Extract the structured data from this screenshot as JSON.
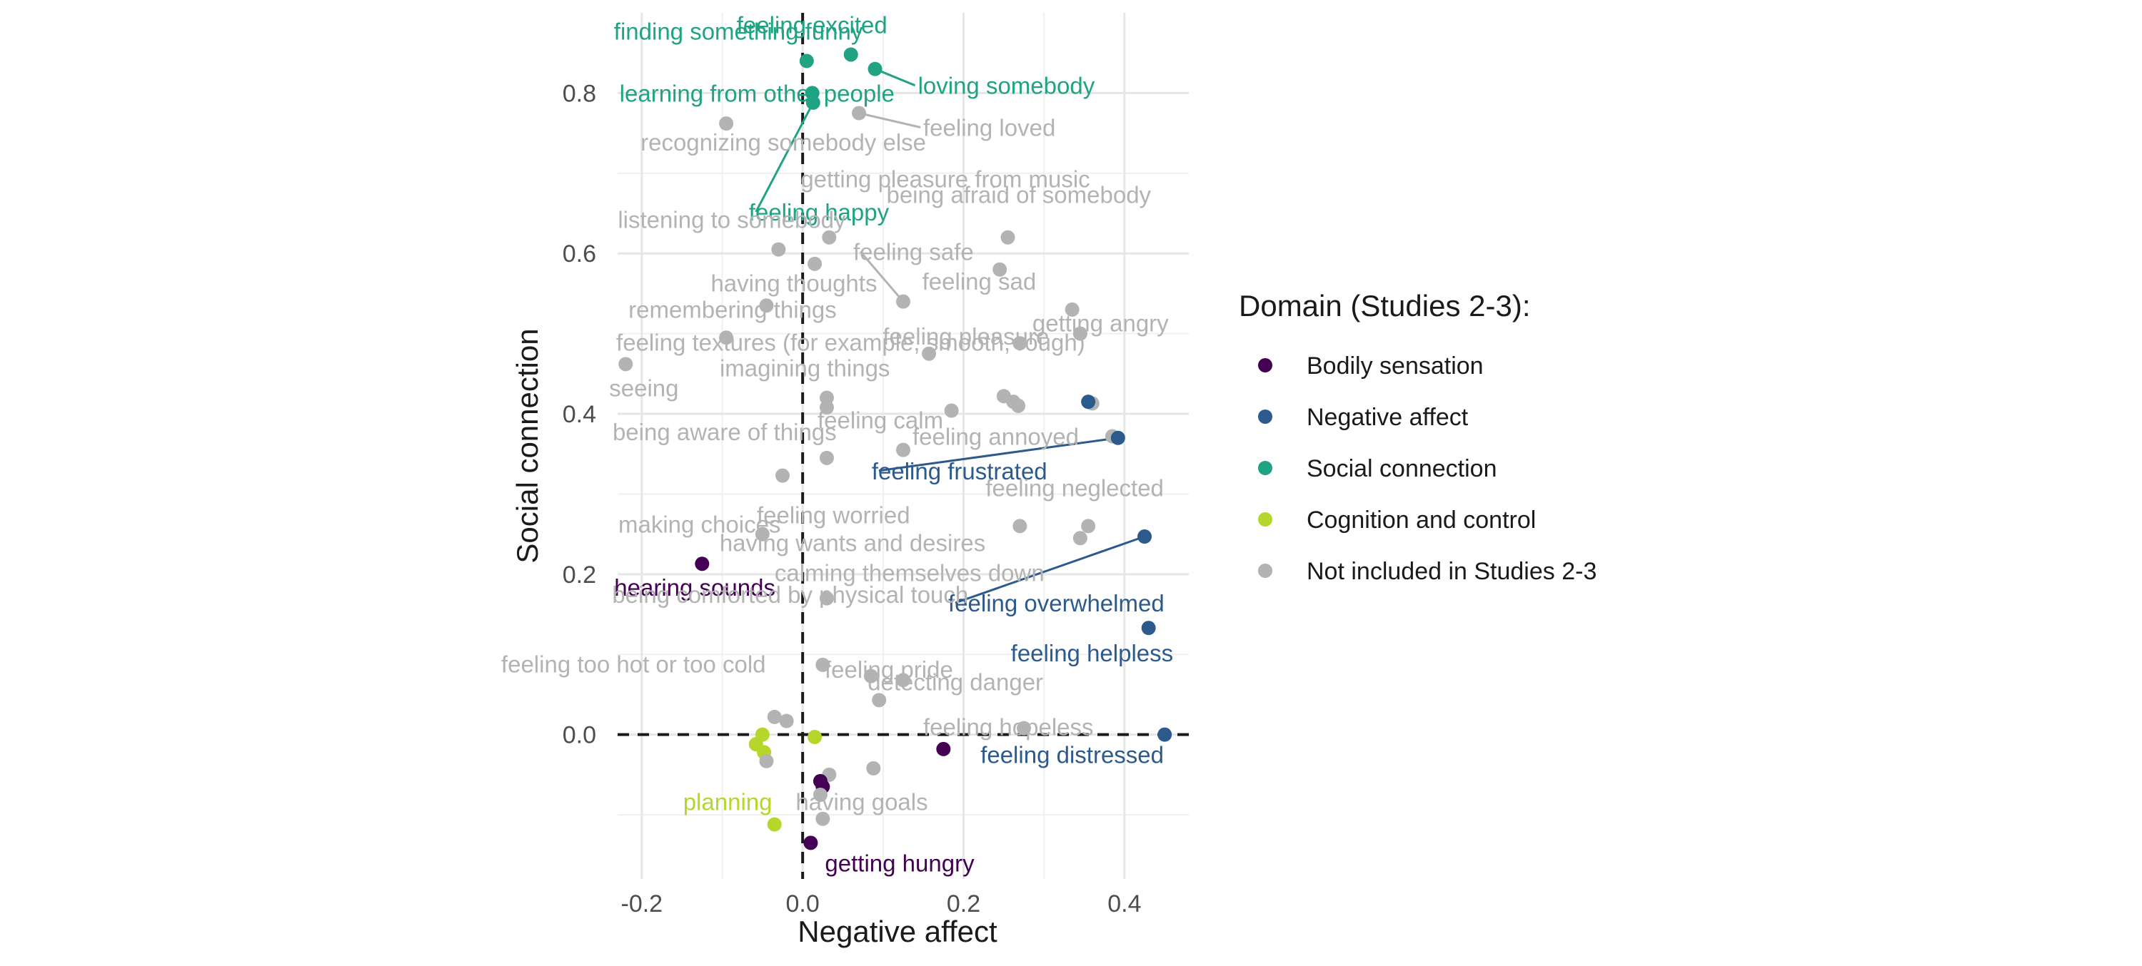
{
  "chart_data": {
    "type": "scatter",
    "title": "",
    "xlabel": "Negative affect",
    "ylabel": "Social connection",
    "xlim": [
      -0.23,
      0.48
    ],
    "ylim": [
      -0.18,
      0.9
    ],
    "x_ticks": [
      -0.2,
      0.0,
      0.2,
      0.4
    ],
    "x_tick_labels": [
      "-0.2",
      "0.0",
      "0.2",
      "0.4"
    ],
    "y_ticks": [
      0.0,
      0.2,
      0.4,
      0.6,
      0.8
    ],
    "y_tick_labels": [
      "0.0",
      "0.2",
      "0.4",
      "0.6",
      "0.8"
    ],
    "reference_lines": {
      "x": 0,
      "y": 0,
      "style": "dashed"
    },
    "grid": true,
    "legend": {
      "title": "Domain (Studies 2-3):",
      "position": "right",
      "entries": [
        {
          "key": "bodily",
          "label": "Bodily sensation",
          "color": "#440154"
        },
        {
          "key": "negative",
          "label": "Negative affect",
          "color": "#2c5a8c"
        },
        {
          "key": "social",
          "label": "Social connection",
          "color": "#1fa383"
        },
        {
          "key": "cognition",
          "label": "Cognition and control",
          "color": "#b5d62b"
        },
        {
          "key": "other",
          "label": "Not included in Studies 2-3",
          "color": "#b3b3b3"
        }
      ]
    },
    "points": [
      {
        "x": 0.005,
        "y": 0.84,
        "group": "social",
        "label": "finding something funny"
      },
      {
        "x": 0.06,
        "y": 0.848,
        "group": "social",
        "label": "feeling excited"
      },
      {
        "x": 0.09,
        "y": 0.83,
        "group": "social",
        "label": "loving somebody"
      },
      {
        "x": 0.012,
        "y": 0.8,
        "group": "social",
        "label": "learning from other people"
      },
      {
        "x": 0.013,
        "y": 0.788,
        "group": "social",
        "label": "feeling happy"
      },
      {
        "x": 0.07,
        "y": 0.775,
        "group": "other",
        "label": "feeling loved"
      },
      {
        "x": -0.095,
        "y": 0.762,
        "group": "other",
        "label": "recognizing somebody else"
      },
      {
        "x": 0.033,
        "y": 0.62,
        "group": "other",
        "label": "getting pleasure from music"
      },
      {
        "x": 0.255,
        "y": 0.62,
        "group": "other",
        "label": "being afraid of somebody"
      },
      {
        "x": -0.03,
        "y": 0.605,
        "group": "other",
        "label": "listening to somebody"
      },
      {
        "x": 0.015,
        "y": 0.587,
        "group": "other",
        "label": ""
      },
      {
        "x": 0.245,
        "y": 0.58,
        "group": "other",
        "label": ""
      },
      {
        "x": 0.125,
        "y": 0.54,
        "group": "other",
        "label": "feeling safe"
      },
      {
        "x": -0.045,
        "y": 0.535,
        "group": "other",
        "label": "having thoughts"
      },
      {
        "x": 0.335,
        "y": 0.53,
        "group": "other",
        "label": "feeling sad"
      },
      {
        "x": -0.095,
        "y": 0.495,
        "group": "other",
        "label": "remembering things"
      },
      {
        "x": 0.157,
        "y": 0.475,
        "group": "other",
        "label": "feeling textures (for example, smooth, rough)"
      },
      {
        "x": -0.22,
        "y": 0.462,
        "group": "other",
        "label": "seeing"
      },
      {
        "x": 0.27,
        "y": 0.488,
        "group": "other",
        "label": "feeling pleasure"
      },
      {
        "x": 0.345,
        "y": 0.5,
        "group": "other",
        "label": "getting angry"
      },
      {
        "x": 0.03,
        "y": 0.42,
        "group": "other",
        "label": "imagining things"
      },
      {
        "x": 0.03,
        "y": 0.408,
        "group": "other",
        "label": ""
      },
      {
        "x": 0.25,
        "y": 0.422,
        "group": "other",
        "label": ""
      },
      {
        "x": 0.262,
        "y": 0.415,
        "group": "other",
        "label": ""
      },
      {
        "x": 0.268,
        "y": 0.41,
        "group": "other",
        "label": ""
      },
      {
        "x": 0.185,
        "y": 0.404,
        "group": "other",
        "label": ""
      },
      {
        "x": 0.36,
        "y": 0.413,
        "group": "other",
        "label": ""
      },
      {
        "x": 0.355,
        "y": 0.415,
        "group": "negative",
        "label": ""
      },
      {
        "x": 0.125,
        "y": 0.355,
        "group": "other",
        "label": "feeling calm"
      },
      {
        "x": 0.03,
        "y": 0.345,
        "group": "other",
        "label": "being aware of things"
      },
      {
        "x": 0.385,
        "y": 0.372,
        "group": "other",
        "label": "feeling annoyed"
      },
      {
        "x": 0.392,
        "y": 0.37,
        "group": "negative",
        "label": "feeling frustrated"
      },
      {
        "x": -0.025,
        "y": 0.323,
        "group": "other",
        "label": "making choices"
      },
      {
        "x": -0.05,
        "y": 0.25,
        "group": "other",
        "label": "having wants and desires"
      },
      {
        "x": 0.27,
        "y": 0.26,
        "group": "other",
        "label": "feeling neglected"
      },
      {
        "x": 0.355,
        "y": 0.26,
        "group": "other",
        "label": ""
      },
      {
        "x": 0.345,
        "y": 0.245,
        "group": "other",
        "label": "calming themselves down"
      },
      {
        "x": 0.425,
        "y": 0.247,
        "group": "negative",
        "label": "feeling overwhelmed"
      },
      {
        "x": -0.125,
        "y": 0.213,
        "group": "bodily",
        "label": "hearing sounds"
      },
      {
        "x": 0.03,
        "y": 0.17,
        "group": "other",
        "label": "feeling worried"
      },
      {
        "x": 0.43,
        "y": 0.133,
        "group": "negative",
        "label": "feeling helpless"
      },
      {
        "x": 0.025,
        "y": 0.087,
        "group": "other",
        "label": "being comforted by physical touch"
      },
      {
        "x": 0.085,
        "y": 0.073,
        "group": "other",
        "label": "feeling too hot or too cold"
      },
      {
        "x": 0.125,
        "y": 0.068,
        "group": "other",
        "label": "feeling pride"
      },
      {
        "x": 0.095,
        "y": 0.043,
        "group": "other",
        "label": "detecting danger"
      },
      {
        "x": 0.275,
        "y": 0.008,
        "group": "other",
        "label": "feeling hopeless"
      },
      {
        "x": 0.45,
        "y": 0.0,
        "group": "negative",
        "label": "feeling distressed"
      },
      {
        "x": -0.035,
        "y": 0.022,
        "group": "other",
        "label": ""
      },
      {
        "x": -0.02,
        "y": 0.017,
        "group": "other",
        "label": ""
      },
      {
        "x": -0.05,
        "y": 0.0,
        "group": "cognition",
        "label": ""
      },
      {
        "x": -0.058,
        "y": -0.012,
        "group": "cognition",
        "label": ""
      },
      {
        "x": -0.048,
        "y": -0.022,
        "group": "cognition",
        "label": ""
      },
      {
        "x": -0.045,
        "y": -0.033,
        "group": "other",
        "label": ""
      },
      {
        "x": 0.015,
        "y": -0.003,
        "group": "cognition",
        "label": ""
      },
      {
        "x": 0.175,
        "y": -0.018,
        "group": "bodily",
        "label": ""
      },
      {
        "x": 0.033,
        "y": -0.05,
        "group": "other",
        "label": ""
      },
      {
        "x": 0.088,
        "y": -0.042,
        "group": "other",
        "label": ""
      },
      {
        "x": 0.022,
        "y": -0.058,
        "group": "bodily",
        "label": ""
      },
      {
        "x": 0.025,
        "y": -0.065,
        "group": "bodily",
        "label": ""
      },
      {
        "x": 0.022,
        "y": -0.075,
        "group": "other",
        "label": ""
      },
      {
        "x": -0.035,
        "y": -0.112,
        "group": "cognition",
        "label": "planning"
      },
      {
        "x": 0.025,
        "y": -0.105,
        "group": "other",
        "label": "having goals"
      },
      {
        "x": 0.01,
        "y": -0.135,
        "group": "bodily",
        "label": "getting hungry"
      }
    ]
  }
}
